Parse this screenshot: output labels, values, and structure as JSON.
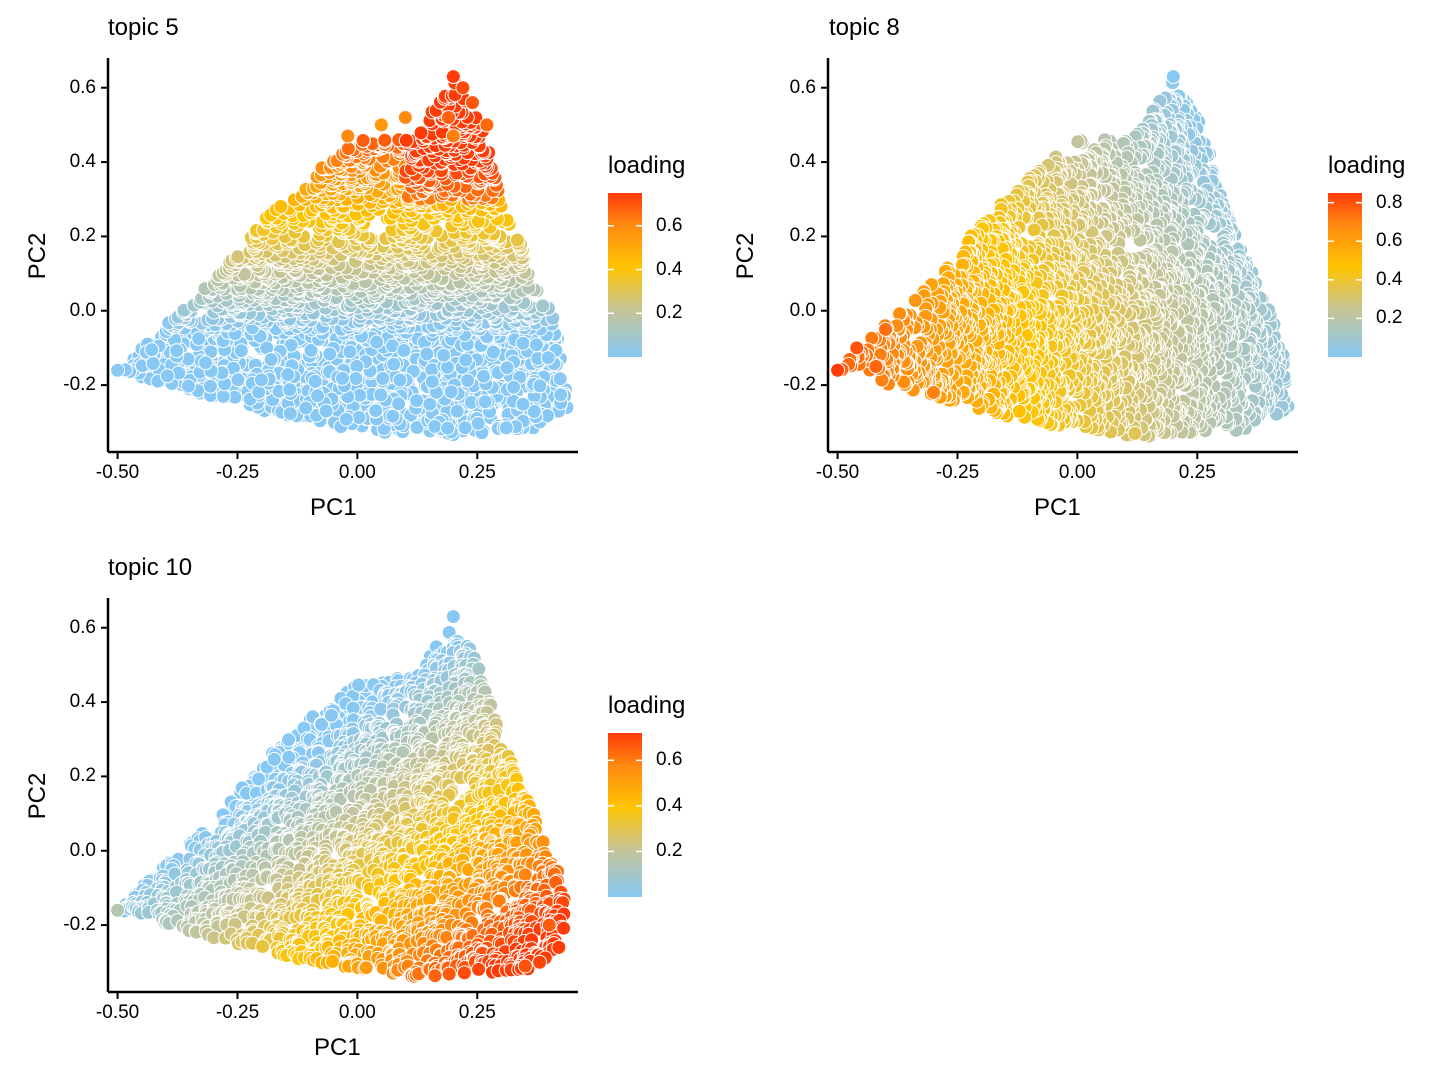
{
  "colors": {
    "low": "#87c8f5",
    "mid_low": "#c8c492",
    "mid": "#ffc400",
    "mid_high": "#ff8a10",
    "high": "#ff3b08",
    "axis": "#000000",
    "point_outline": "#ffffff"
  },
  "chart_data": [
    {
      "type": "scatter",
      "title": "topic 5",
      "xlabel": "PC1",
      "ylabel": "PC2",
      "xlim": [
        -0.52,
        0.46
      ],
      "ylim": [
        -0.38,
        0.68
      ],
      "x_ticks": [
        -0.5,
        -0.25,
        0.0,
        0.25
      ],
      "x_tick_labels": [
        "-0.50",
        "-0.25",
        "0.00",
        "0.25"
      ],
      "y_ticks": [
        -0.2,
        0.0,
        0.2,
        0.4,
        0.6
      ],
      "y_tick_labels": [
        "-0.2",
        "0.0",
        "0.2",
        "0.4",
        "0.6"
      ],
      "grid": false,
      "legend": {
        "title": "loading",
        "placement": "right",
        "range": [
          0.0,
          0.75
        ],
        "ticks": [
          0.2,
          0.4,
          0.6
        ],
        "tick_labels": [
          "0.2",
          "0.4",
          "0.6"
        ]
      },
      "highlights": [
        {
          "x": 0.2,
          "y": 0.63,
          "loading": 0.75
        },
        {
          "x": 0.22,
          "y": 0.6,
          "loading": 0.72
        },
        {
          "x": 0.24,
          "y": 0.56,
          "loading": 0.7
        },
        {
          "x": 0.19,
          "y": 0.52,
          "loading": 0.68
        },
        {
          "x": 0.27,
          "y": 0.5,
          "loading": 0.66
        },
        {
          "x": 0.2,
          "y": 0.47,
          "loading": 0.62
        },
        {
          "x": 0.1,
          "y": 0.52,
          "loading": 0.6
        },
        {
          "x": 0.05,
          "y": 0.5,
          "loading": 0.55
        },
        {
          "x": -0.02,
          "y": 0.47,
          "loading": 0.6
        },
        {
          "x": -0.5,
          "y": -0.16,
          "loading": 0.0
        }
      ]
    },
    {
      "type": "scatter",
      "title": "topic 8",
      "xlabel": "PC1",
      "ylabel": "PC2",
      "xlim": [
        -0.52,
        0.46
      ],
      "ylim": [
        -0.38,
        0.68
      ],
      "x_ticks": [
        -0.5,
        -0.25,
        0.0,
        0.25
      ],
      "x_tick_labels": [
        "-0.50",
        "-0.25",
        "0.00",
        "0.25"
      ],
      "y_ticks": [
        -0.2,
        0.0,
        0.2,
        0.4,
        0.6
      ],
      "y_tick_labels": [
        "-0.2",
        "0.0",
        "0.2",
        "0.4",
        "0.6"
      ],
      "grid": false,
      "legend": {
        "title": "loading",
        "placement": "right",
        "range": [
          0.0,
          0.85
        ],
        "ticks": [
          0.2,
          0.4,
          0.6,
          0.8
        ],
        "tick_labels": [
          "0.2",
          "0.4",
          "0.6",
          "0.8"
        ]
      },
      "highlights": [
        {
          "x": -0.5,
          "y": -0.16,
          "loading": 0.85
        },
        {
          "x": -0.46,
          "y": -0.1,
          "loading": 0.8
        },
        {
          "x": -0.42,
          "y": -0.15,
          "loading": 0.76
        },
        {
          "x": -0.4,
          "y": -0.05,
          "loading": 0.74
        },
        {
          "x": -0.3,
          "y": -0.22,
          "loading": 0.7
        },
        {
          "x": 0.2,
          "y": 0.63,
          "loading": 0.0
        },
        {
          "x": 0.12,
          "y": -0.33,
          "loading": 0.35
        }
      ]
    },
    {
      "type": "scatter",
      "title": "topic 10",
      "xlabel": "PC1",
      "ylabel": "PC2",
      "xlim": [
        -0.52,
        0.46
      ],
      "ylim": [
        -0.38,
        0.68
      ],
      "x_ticks": [
        -0.5,
        -0.25,
        0.0,
        0.25
      ],
      "x_tick_labels": [
        "-0.50",
        "-0.25",
        "0.00",
        "0.25"
      ],
      "y_ticks": [
        -0.2,
        0.0,
        0.2,
        0.4,
        0.6
      ],
      "y_tick_labels": [
        "-0.2",
        "0.0",
        "0.2",
        "0.4",
        "0.6"
      ],
      "grid": false,
      "legend": {
        "title": "loading",
        "placement": "right",
        "range": [
          0.0,
          0.72
        ],
        "ticks": [
          0.2,
          0.4,
          0.6
        ],
        "tick_labels": [
          "0.2",
          "0.4",
          "0.6"
        ]
      },
      "highlights": [
        {
          "x": 0.42,
          "y": -0.26,
          "loading": 0.72
        },
        {
          "x": 0.38,
          "y": -0.3,
          "loading": 0.7
        },
        {
          "x": 0.35,
          "y": -0.31,
          "loading": 0.68
        },
        {
          "x": 0.4,
          "y": -0.2,
          "loading": 0.66
        },
        {
          "x": 0.2,
          "y": 0.63,
          "loading": 0.0
        },
        {
          "x": -0.5,
          "y": -0.16,
          "loading": 0.15
        }
      ]
    }
  ]
}
